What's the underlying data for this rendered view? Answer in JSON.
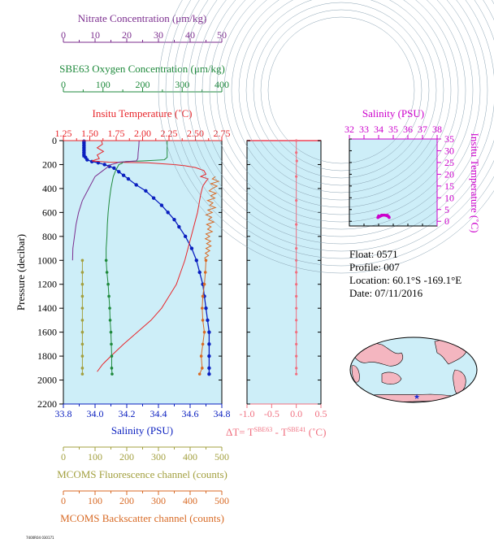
{
  "colors": {
    "nitrate": "#7b2d8e",
    "oxygen": "#1f8a3c",
    "temperature": "#e8262b",
    "salinity": "#0a1fbf",
    "fluorescence": "#a3a040",
    "backscatter": "#d86a25",
    "delta_t": "#f07080",
    "ts_axis": "#cc00cc",
    "plot_bg": "#cdeef8",
    "land": "#f4b6c0"
  },
  "float_info": {
    "float": "Float:  0571",
    "profile": "Profile:  007",
    "location": "Location:  60.1°S  -169.1°E",
    "date": "Date:  07/11/2016"
  },
  "footer_id": "7400R04 030171",
  "chart_data": [
    {
      "type": "line",
      "panel": "main-profile",
      "ylabel": "Pressure (decibar)",
      "ylim": [
        2200,
        0
      ],
      "yticks": [
        0,
        200,
        400,
        600,
        800,
        1000,
        1200,
        1400,
        1600,
        1800,
        2000,
        2200
      ],
      "grid": false,
      "axes": {
        "nitrate": {
          "label": "Nitrate Concentration (μm/kg)",
          "range": [
            0,
            50
          ],
          "ticks": [
            0,
            10,
            20,
            30,
            40,
            50
          ]
        },
        "oxygen": {
          "label": "SBE63 Oxygen Concentration (μm/kg)",
          "range": [
            0,
            400
          ],
          "ticks": [
            0,
            100,
            200,
            300,
            400
          ]
        },
        "temperature": {
          "label": "Insitu Temperature (˚C)",
          "range": [
            1.25,
            2.75
          ],
          "ticks": [
            "1.25",
            "1.50",
            "1.75",
            "2.00",
            "2.25",
            "2.50",
            "2.75"
          ]
        },
        "salinity": {
          "label": "Salinity (PSU)",
          "range": [
            33.8,
            34.8
          ],
          "ticks": [
            "33.8",
            "34.0",
            "34.2",
            "34.4",
            "34.6",
            "34.8"
          ]
        },
        "fluorescence": {
          "label": "MCOMS Fluorescence channel (counts)",
          "range": [
            0,
            500
          ],
          "ticks": [
            0,
            100,
            200,
            300,
            400,
            500
          ]
        },
        "backscatter": {
          "label": "MCOMS Backscatter channel (counts)",
          "range": [
            0,
            500
          ],
          "ticks": [
            0,
            100,
            200,
            300,
            400,
            500
          ]
        }
      },
      "series": [
        {
          "axis": "salinity",
          "marker": true,
          "points": [
            [
              33.93,
              5
            ],
            [
              33.93,
              20
            ],
            [
              33.93,
              40
            ],
            [
              33.93,
              60
            ],
            [
              33.93,
              80
            ],
            [
              33.93,
              100
            ],
            [
              33.93,
              120
            ],
            [
              33.94,
              140
            ],
            [
              33.95,
              160
            ],
            [
              33.98,
              175
            ],
            [
              34.02,
              185
            ],
            [
              34.06,
              200
            ],
            [
              34.09,
              215
            ],
            [
              34.12,
              230
            ],
            [
              34.15,
              260
            ],
            [
              34.18,
              290
            ],
            [
              34.21,
              320
            ],
            [
              34.26,
              370
            ],
            [
              34.32,
              420
            ],
            [
              34.37,
              480
            ],
            [
              34.42,
              540
            ],
            [
              34.46,
              600
            ],
            [
              34.5,
              660
            ],
            [
              34.53,
              720
            ],
            [
              34.57,
              800
            ],
            [
              34.61,
              900
            ],
            [
              34.64,
              1000
            ],
            [
              34.66,
              1100
            ],
            [
              34.68,
              1200
            ],
            [
              34.69,
              1300
            ],
            [
              34.7,
              1400
            ],
            [
              34.71,
              1500
            ],
            [
              34.72,
              1600
            ],
            [
              34.72,
              1700
            ],
            [
              34.72,
              1800
            ],
            [
              34.72,
              1900
            ],
            [
              34.72,
              1950
            ]
          ]
        },
        {
          "axis": "temperature",
          "marker": false,
          "points": [
            [
              1.61,
              0
            ],
            [
              1.62,
              30
            ],
            [
              1.57,
              60
            ],
            [
              1.63,
              90
            ],
            [
              1.57,
              120
            ],
            [
              1.59,
              150
            ],
            [
              1.52,
              170
            ],
            [
              1.68,
              180
            ],
            [
              2.05,
              185
            ],
            [
              2.3,
              200
            ],
            [
              2.4,
              210
            ],
            [
              2.5,
              225
            ],
            [
              2.58,
              250
            ],
            [
              2.6,
              280
            ],
            [
              2.55,
              300
            ],
            [
              2.62,
              320
            ],
            [
              2.6,
              340
            ],
            [
              2.57,
              380
            ],
            [
              2.55,
              450
            ],
            [
              2.52,
              600
            ],
            [
              2.49,
              700
            ],
            [
              2.46,
              800
            ],
            [
              2.43,
              900
            ],
            [
              2.4,
              1000
            ],
            [
              2.36,
              1100
            ],
            [
              2.32,
              1200
            ],
            [
              2.25,
              1300
            ],
            [
              2.18,
              1400
            ],
            [
              2.08,
              1500
            ],
            [
              1.95,
              1600
            ],
            [
              1.82,
              1700
            ],
            [
              1.7,
              1800
            ],
            [
              1.62,
              1870
            ],
            [
              1.57,
              1930
            ]
          ]
        },
        {
          "axis": "oxygen",
          "marker": false,
          "points": [
            [
              262,
              0
            ],
            [
              262,
              50
            ],
            [
              262,
              100
            ],
            [
              262,
              140
            ],
            [
              255,
              160
            ],
            [
              200,
              170
            ],
            [
              158,
              175
            ],
            [
              150,
              180
            ],
            [
              148,
              190
            ],
            [
              140,
              200
            ],
            [
              132,
              250
            ],
            [
              126,
              300
            ],
            [
              120,
              400
            ],
            [
              116,
              500
            ],
            [
              113,
              600
            ],
            [
              111,
              700
            ],
            [
              110,
              800
            ],
            [
              108,
              900
            ],
            [
              108,
              1000
            ]
          ]
        },
        {
          "axis": "oxygen",
          "marker": true,
          "points": [
            [
              108,
              1000
            ],
            [
              110,
              1100
            ],
            [
              113,
              1200
            ],
            [
              115,
              1300
            ],
            [
              117,
              1400
            ],
            [
              118,
              1500
            ],
            [
              120,
              1600
            ],
            [
              121,
              1700
            ],
            [
              122,
              1800
            ],
            [
              122,
              1900
            ],
            [
              123,
              1950
            ]
          ]
        },
        {
          "axis": "nitrate",
          "marker": false,
          "points": [
            [
              23.9,
              0
            ],
            [
              23.8,
              50
            ],
            [
              23.6,
              100
            ],
            [
              23.5,
              150
            ],
            [
              23.0,
              170
            ],
            [
              20.0,
              175
            ],
            [
              17.5,
              180
            ],
            [
              16.5,
              190
            ],
            [
              15.0,
              200
            ],
            [
              12.5,
              250
            ],
            [
              10.0,
              300
            ],
            [
              8.0,
              400
            ],
            [
              6.0,
              500
            ],
            [
              4.8,
              600
            ],
            [
              4.0,
              700
            ],
            [
              3.5,
              800
            ],
            [
              3.0,
              900
            ],
            [
              2.9,
              1000
            ]
          ]
        },
        {
          "axis": "fluorescence",
          "marker": true,
          "points": [
            [
              60,
              1000
            ],
            [
              60,
              1100
            ],
            [
              60,
              1200
            ],
            [
              60,
              1300
            ],
            [
              60,
              1400
            ],
            [
              60,
              1500
            ],
            [
              60,
              1600
            ],
            [
              60,
              1700
            ],
            [
              60,
              1800
            ],
            [
              60,
              1900
            ],
            [
              60,
              1950
            ]
          ]
        },
        {
          "axis": "backscatter",
          "marker": false,
          "points": [
            [
              480,
              300
            ],
            [
              470,
              320
            ],
            [
              490,
              340
            ],
            [
              465,
              360
            ],
            [
              485,
              380
            ],
            [
              470,
              400
            ],
            [
              460,
              420
            ],
            [
              482,
              440
            ],
            [
              465,
              460
            ],
            [
              478,
              480
            ],
            [
              455,
              500
            ],
            [
              472,
              520
            ],
            [
              462,
              540
            ],
            [
              480,
              560
            ],
            [
              456,
              580
            ],
            [
              470,
              600
            ],
            [
              450,
              620
            ],
            [
              468,
              640
            ],
            [
              458,
              660
            ],
            [
              475,
              680
            ],
            [
              452,
              700
            ],
            [
              466,
              720
            ],
            [
              455,
              740
            ],
            [
              470,
              760
            ],
            [
              450,
              780
            ],
            [
              462,
              800
            ],
            [
              448,
              820
            ],
            [
              465,
              840
            ],
            [
              452,
              860
            ],
            [
              466,
              880
            ],
            [
              450,
              900
            ],
            [
              462,
              920
            ],
            [
              448,
              940
            ],
            [
              458,
              960
            ],
            [
              446,
              980
            ],
            [
              450,
              1000
            ]
          ]
        },
        {
          "axis": "backscatter",
          "marker": true,
          "points": [
            [
              450,
              1000
            ],
            [
              448,
              1100
            ],
            [
              445,
              1200
            ],
            [
              440,
              1300
            ],
            [
              438,
              1400
            ],
            [
              440,
              1500
            ],
            [
              445,
              1600
            ],
            [
              440,
              1700
            ],
            [
              435,
              1800
            ],
            [
              438,
              1900
            ],
            [
              430,
              1950
            ]
          ]
        }
      ]
    },
    {
      "type": "line",
      "panel": "delta-t",
      "xlabel": "ΔT= T",
      "xlabel_sup1": "SBE63",
      "xlabel_mid": " - T",
      "xlabel_sup2": "SBE41",
      "xlabel_unit": " (˚C)",
      "xlim": [
        -1.0,
        0.5
      ],
      "xticks": [
        "-1.0",
        "-0.5",
        "0.0",
        "0.5"
      ],
      "ylim": [
        2200,
        0
      ],
      "series": [
        {
          "marker": true,
          "points": [
            [
              0.0,
              0
            ],
            [
              0.0,
              50
            ],
            [
              0.0,
              100
            ],
            [
              0.0,
              150
            ],
            [
              0.01,
              170
            ],
            [
              0.0,
              200
            ],
            [
              0.0,
              300
            ],
            [
              0.0,
              400
            ],
            [
              0.0,
              500
            ],
            [
              0.0,
              600
            ],
            [
              0.0,
              700
            ],
            [
              0.0,
              800
            ],
            [
              0.0,
              900
            ],
            [
              0.0,
              1000
            ],
            [
              0.0,
              1100
            ],
            [
              0.0,
              1200
            ],
            [
              0.0,
              1300
            ],
            [
              0.0,
              1400
            ],
            [
              0.0,
              1500
            ],
            [
              0.0,
              1600
            ],
            [
              0.0,
              1700
            ],
            [
              0.0,
              1800
            ],
            [
              0.0,
              1900
            ],
            [
              0.0,
              1950
            ]
          ]
        }
      ]
    },
    {
      "type": "scatter",
      "panel": "ts-diagram",
      "xlabel": "Salinity (PSU)",
      "ylabel": "Insitu Temperature (˚C)",
      "xlim": [
        32,
        38
      ],
      "xticks": [
        32,
        33,
        34,
        35,
        36,
        37,
        38
      ],
      "ylim": [
        -2,
        35
      ],
      "yticks": [
        0,
        5,
        10,
        15,
        20,
        25,
        30,
        35
      ],
      "points": [
        [
          33.95,
          1.6
        ],
        [
          34.0,
          1.8
        ],
        [
          34.1,
          2.1
        ],
        [
          34.2,
          2.4
        ],
        [
          34.3,
          2.6
        ],
        [
          34.4,
          2.6
        ],
        [
          34.5,
          2.5
        ],
        [
          34.55,
          2.4
        ],
        [
          34.6,
          2.3
        ],
        [
          34.65,
          2.1
        ],
        [
          34.7,
          1.9
        ],
        [
          34.72,
          1.6
        ],
        [
          34.0,
          2.3
        ],
        [
          34.2,
          2.6
        ],
        [
          34.6,
          2.5
        ]
      ]
    }
  ]
}
